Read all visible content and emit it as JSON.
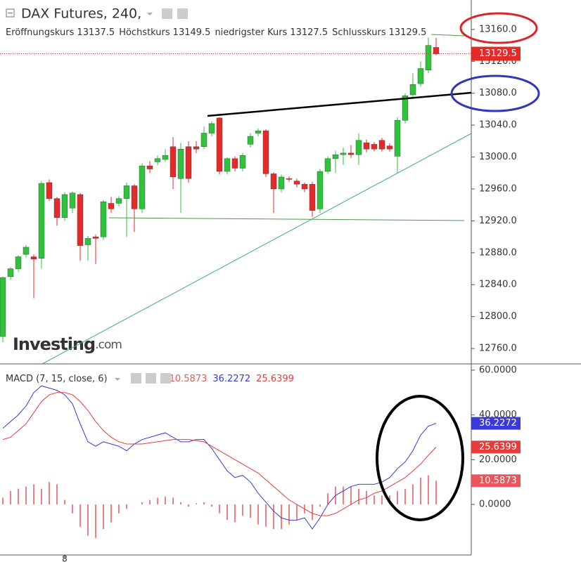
{
  "chart_data": [
    {
      "type": "candlestick",
      "title": "DAX Futures, 240,",
      "ohlc_labels": [
        "Eröffnungskurs",
        "Höchstkurs",
        "niedrigster Kurs",
        "Schlusskurs"
      ],
      "logo": "Investing",
      "logo_suffix": ".com",
      "categories": [
        null,
        null,
        null,
        null,
        null,
        null,
        null,
        null,
        "8",
        null,
        null,
        null,
        null,
        null,
        null,
        null,
        null,
        null,
        null,
        null,
        null,
        null,
        null,
        null,
        null,
        null,
        null,
        null,
        null,
        null,
        null,
        null,
        null,
        null,
        null,
        null,
        null,
        null,
        null,
        null,
        null,
        null,
        null,
        null,
        null,
        null,
        null,
        null,
        null,
        null,
        null,
        null,
        null,
        null,
        null,
        null,
        null
      ],
      "open": [
        12775,
        12850,
        12860,
        12878,
        12875,
        12873,
        12968,
        12948,
        12924,
        12936,
        12953,
        12890,
        12900,
        12900,
        12942,
        12942,
        12948,
        12964,
        12935,
        12989,
        12994,
        12997,
        13013,
        12973,
        13013,
        13013,
        13013,
        13030,
        13049,
        12982,
        12998,
        12986,
        13016,
        13030,
        13033,
        12979,
        12960,
        12973,
        12970,
        12966,
        12966,
        12935,
        12982,
        12998,
        13003,
        13005,
        13003,
        13018,
        13016,
        13021,
        13014,
        13001,
        13046,
        13078,
        13092,
        13109,
        13137.5
      ],
      "high": [
        12850,
        12862,
        12877,
        12890,
        12878,
        12970,
        12972,
        12950,
        12956,
        12957,
        12955,
        12901,
        12903,
        12946,
        12950,
        12951,
        12968,
        12966,
        12992,
        12995,
        13002,
        13010,
        13025,
        13018,
        13020,
        13020,
        13038,
        13045,
        13050,
        13000,
        13001,
        13005,
        13030,
        13036,
        13035,
        12981,
        12978,
        12976,
        12973,
        12968,
        12969,
        12985,
        13001,
        13008,
        13012,
        13015,
        13030,
        13022,
        13019,
        13024,
        13017,
        13050,
        13080,
        13105,
        13120,
        13150,
        13149.5
      ],
      "low": [
        12768,
        12846,
        12856,
        12874,
        12823,
        12860,
        12945,
        12914,
        12920,
        12930,
        12870,
        12870,
        12866,
        12896,
        12930,
        12938,
        12900,
        12906,
        12930,
        12980,
        12990,
        12994,
        12960,
        12930,
        12968,
        13005,
        13010,
        13026,
        12978,
        12978,
        12982,
        12982,
        13012,
        13026,
        12975,
        12930,
        12956,
        12969,
        12962,
        12956,
        12925,
        12930,
        12979,
        12980,
        12990,
        12999,
        12990,
        13006,
        13007,
        13007,
        13007,
        12980,
        13042,
        13075,
        13088,
        13105,
        13127.5
      ],
      "close": [
        12849,
        12860,
        12875,
        12887,
        12872,
        12967,
        12948,
        12924,
        12953,
        12955,
        12889,
        12898,
        12898,
        12944,
        12935,
        12948,
        12964,
        12935,
        12989,
        12985,
        12998,
        13002,
        12975,
        13010,
        12973,
        13010,
        13030,
        13042,
        12982,
        12998,
        12986,
        13002,
        13026,
        13033,
        12979,
        12960,
        12975,
        12972,
        12966,
        12960,
        12933,
        12982,
        12998,
        13003,
        13005,
        13003,
        13021,
        13010,
        13010,
        13010,
        13010,
        13046,
        13077,
        13091,
        13111,
        13140,
        13129.5
      ],
      "up_color": "#2fc33c",
      "down_color": "#e52a2a",
      "ylim": [
        12740.7,
        13196.9
      ],
      "yticks": [
        {
          "value": 12760,
          "label": "12760.0"
        },
        {
          "value": 12800,
          "label": "12800.0"
        },
        {
          "value": 12840,
          "label": "12840.0"
        },
        {
          "value": 12880,
          "label": "12880.0"
        },
        {
          "value": 12920,
          "label": "12920.0"
        },
        {
          "value": 12960,
          "label": "12960.0"
        },
        {
          "value": 13000,
          "label": "13000.0"
        },
        {
          "value": 13040,
          "label": "13040.0"
        },
        {
          "value": 13080,
          "label": "13080.0"
        },
        {
          "value": 13120,
          "label": "13120.0"
        },
        {
          "value": 13160,
          "label": "13160.0"
        }
      ]
    },
    {
      "type": "macd",
      "title": "MACD (7, 15, close, 6)",
      "series": [
        {
          "name": "histogram",
          "color": "#e8555a",
          "values": [
            3,
            6,
            7,
            8,
            9,
            7,
            10,
            9,
            2,
            -4,
            -10,
            -14,
            -15,
            -11,
            -8,
            -4,
            -2,
            0,
            1,
            2,
            3,
            3.5,
            3,
            1,
            -1,
            0.5,
            1,
            -1,
            -4,
            -7,
            -8,
            -5,
            -6,
            -9,
            -10,
            -11,
            -11,
            -9,
            -7,
            -4,
            -7,
            -1,
            5,
            8,
            8,
            8,
            7,
            6,
            4,
            4,
            4,
            6,
            7,
            9,
            12,
            13,
            10.5873
          ]
        },
        {
          "name": "MACD",
          "color": "#3a3ad8",
          "values": [
            34,
            37,
            40,
            44,
            50,
            53,
            52,
            51,
            49,
            45,
            36,
            28,
            26,
            28,
            27,
            26,
            24,
            27,
            29,
            30,
            31,
            32,
            30,
            28,
            28,
            29,
            29,
            25,
            20,
            15,
            12,
            13,
            10,
            5,
            1,
            -3,
            -6,
            -7,
            -7,
            -6,
            -11,
            -6,
            0,
            4,
            6,
            8,
            9,
            9,
            9,
            10,
            12,
            16,
            19,
            24,
            31,
            35,
            36.2272
          ]
        },
        {
          "name": "signal",
          "color": "#e83c3c",
          "values": [
            29,
            30,
            33,
            36,
            41,
            46,
            49,
            50,
            50,
            49,
            46,
            42,
            37,
            33,
            30,
            28,
            27,
            27,
            27,
            27.5,
            28,
            28.5,
            29,
            29,
            29,
            28.5,
            28,
            26,
            24,
            22,
            20,
            18,
            16,
            14,
            11,
            8,
            5,
            2,
            0,
            -2,
            -4,
            -5,
            -5,
            -4,
            -2,
            0,
            2,
            3,
            5,
            6,
            8,
            10,
            12,
            15,
            18,
            22,
            25.6399
          ]
        }
      ],
      "ylim": [
        -22.6,
        62.8
      ],
      "yticks": [
        {
          "value": 0,
          "label": "0.0000"
        },
        {
          "value": 20,
          "label": "20.0000"
        },
        {
          "value": 40,
          "label": "40.0000"
        },
        {
          "value": 60,
          "label": "60.0000"
        }
      ]
    }
  ]
}
